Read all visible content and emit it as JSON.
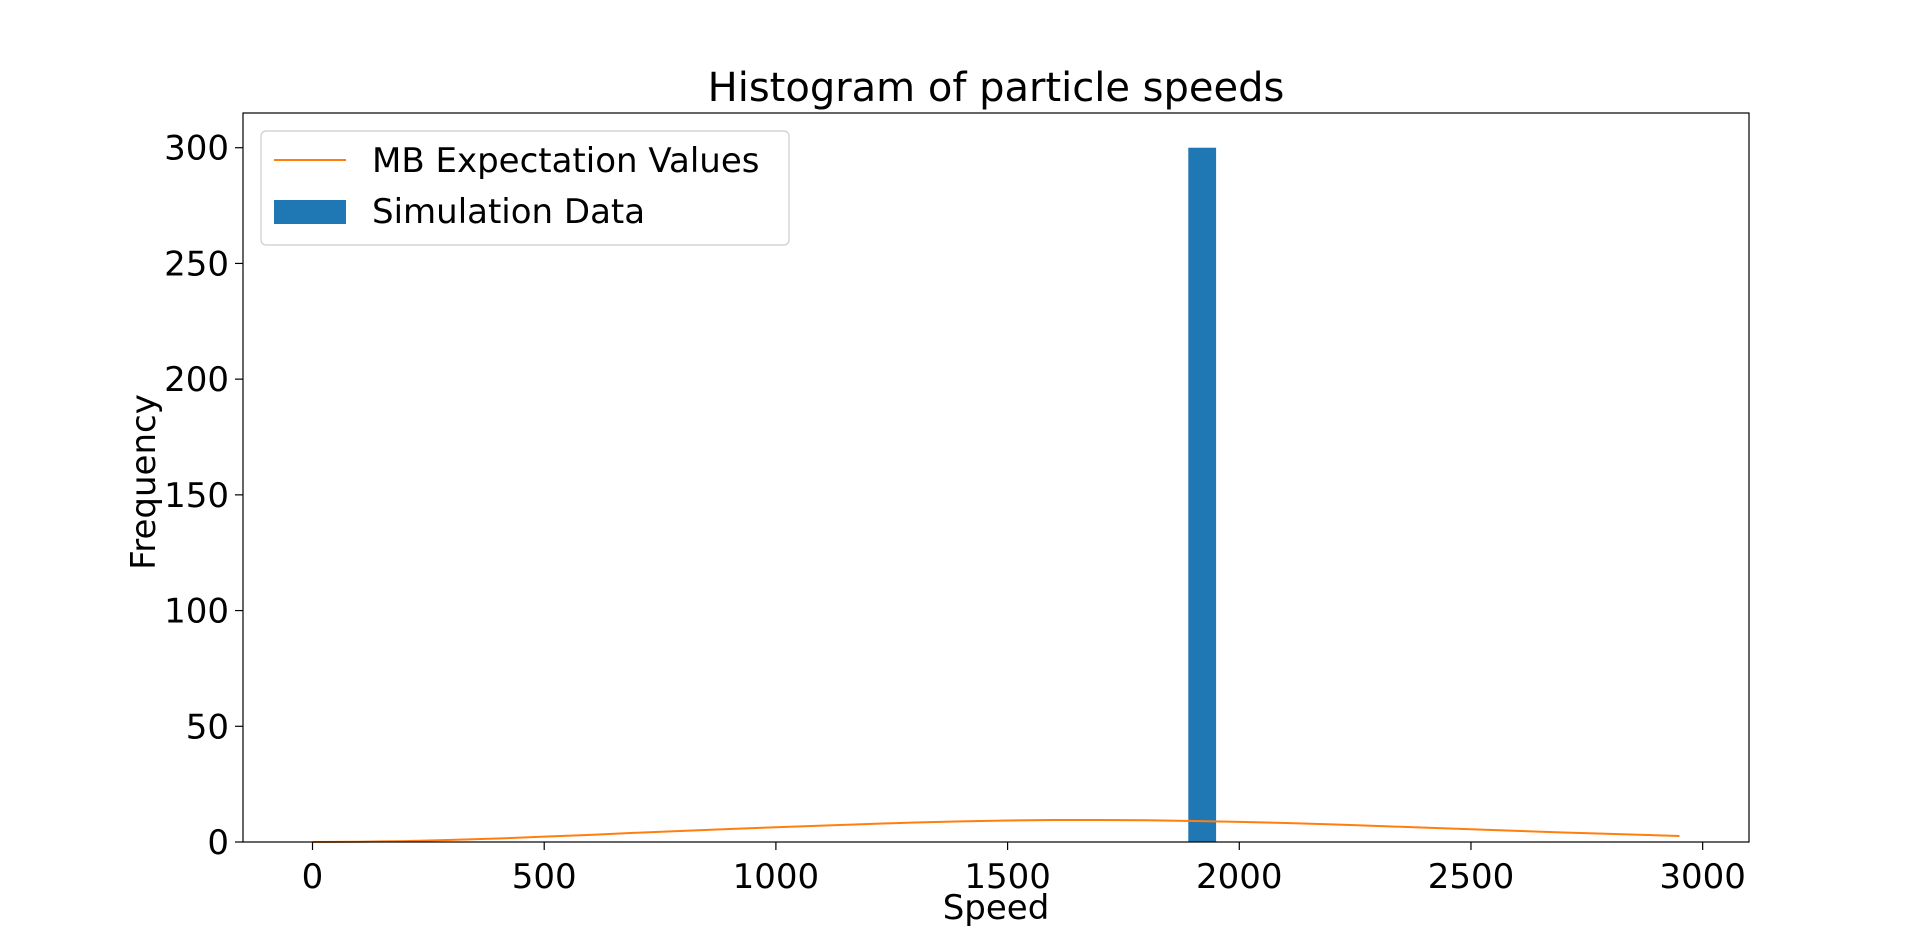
{
  "chart_data": {
    "type": "bar",
    "title": "Histogram of particle speeds",
    "xlabel": "Speed",
    "ylabel": "Frequency",
    "xlim": [
      -150,
      3100
    ],
    "ylim": [
      0,
      315
    ],
    "xticks": [
      0,
      500,
      1000,
      1500,
      2000,
      2500,
      3000
    ],
    "yticks": [
      0,
      50,
      100,
      150,
      200,
      250,
      300
    ],
    "legend_position": "upper-left",
    "grid": false,
    "series": [
      {
        "name": "MB Expectation Values",
        "kind": "line",
        "color": "#ff7f0e",
        "x": [
          0,
          100,
          200,
          300,
          400,
          500,
          600,
          700,
          800,
          900,
          1000,
          1100,
          1200,
          1300,
          1400,
          1500,
          1600,
          1700,
          1800,
          1900,
          2000,
          2100,
          2200,
          2300,
          2400,
          2500,
          2600,
          2700,
          2800,
          2950
        ],
        "y": [
          0,
          0.1,
          0.4,
          0.9,
          1.5,
          2.3,
          3.1,
          4.0,
          4.8,
          5.6,
          6.4,
          7.1,
          7.8,
          8.4,
          8.9,
          9.3,
          9.5,
          9.5,
          9.4,
          9.1,
          8.7,
          8.2,
          7.6,
          6.9,
          6.2,
          5.5,
          4.8,
          4.1,
          3.5,
          2.6
        ]
      },
      {
        "name": "Simulation Data",
        "kind": "bar",
        "color": "#1f77b4",
        "bins": [
          {
            "x0": 1890,
            "x1": 1950,
            "value": 300
          }
        ]
      }
    ]
  }
}
